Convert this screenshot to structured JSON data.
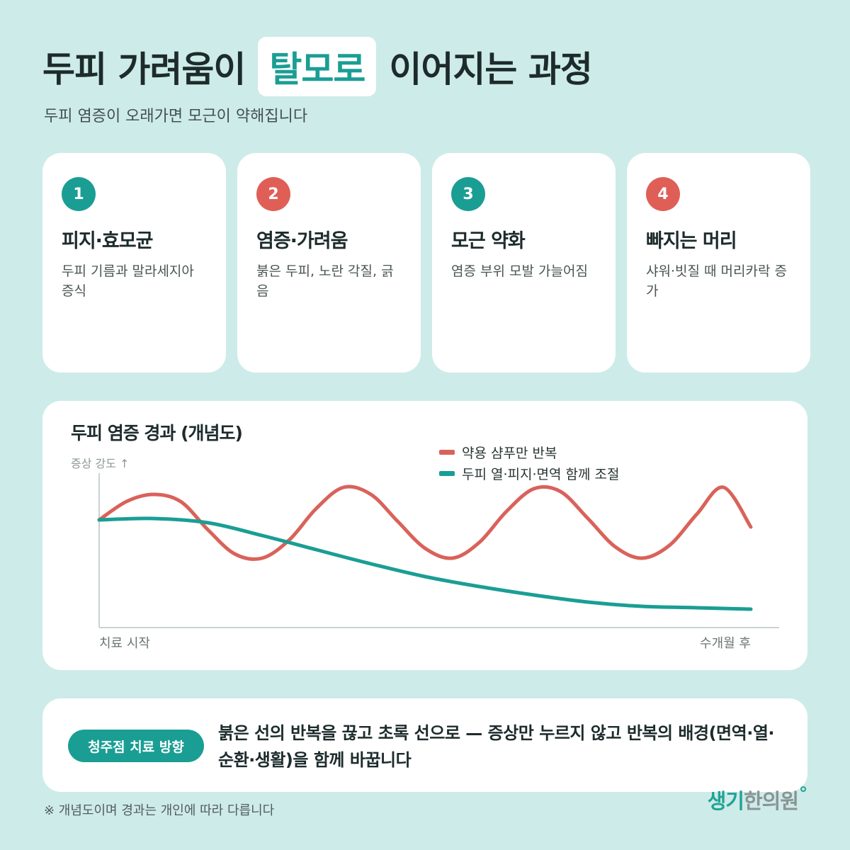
{
  "title": {
    "before": "두피 가려움이",
    "highlight": "탈모로",
    "after": "이어지는 과정"
  },
  "subtitle": "두피 염증이 오래가면 모근이 약해집니다",
  "steps": [
    {
      "number": "1",
      "title": "피지·효모균",
      "desc": "두피 기름과 말라세지아 증식",
      "color": "#1a9e94"
    },
    {
      "number": "2",
      "title": "염증·가려움",
      "desc": "붉은 두피, 노란 각질, 긁음",
      "color": "#df5f57"
    },
    {
      "number": "3",
      "title": "모근 약화",
      "desc": "염증 부위 모발 가늘어짐",
      "color": "#1a9e94"
    },
    {
      "number": "4",
      "title": "빠지는 머리",
      "desc": "샤워·빗질 때 머리카락 증가",
      "color": "#df5f57"
    }
  ],
  "chart_data": {
    "type": "line",
    "title": "두피 염증 경과 (개념도)",
    "ylabel": "증상 강도 ↑",
    "x_start_label": "치료 시작",
    "x_end_label": "수개월 후",
    "xlim": [
      0,
      1
    ],
    "ylim": [
      0,
      1
    ],
    "grid": false,
    "legend_position": "top-right",
    "series": [
      {
        "name": "약용 샴푸만 반복",
        "color": "#d9625a",
        "points": [
          [
            0,
            0.71
          ],
          [
            0.042,
            0.84
          ],
          [
            0.083,
            0.89
          ],
          [
            0.125,
            0.84
          ],
          [
            0.167,
            0.64
          ],
          [
            0.208,
            0.47
          ],
          [
            0.25,
            0.44
          ],
          [
            0.292,
            0.57
          ],
          [
            0.333,
            0.79
          ],
          [
            0.375,
            0.94
          ],
          [
            0.417,
            0.89
          ],
          [
            0.458,
            0.7
          ],
          [
            0.5,
            0.51
          ],
          [
            0.542,
            0.44
          ],
          [
            0.583,
            0.55
          ],
          [
            0.625,
            0.77
          ],
          [
            0.667,
            0.93
          ],
          [
            0.708,
            0.91
          ],
          [
            0.75,
            0.72
          ],
          [
            0.792,
            0.52
          ],
          [
            0.833,
            0.44
          ],
          [
            0.875,
            0.53
          ],
          [
            0.917,
            0.75
          ],
          [
            0.958,
            0.94
          ],
          [
            1.0,
            0.87
          ],
          [
            1.0,
            0.87
          ],
          [
            1.0,
            0.87
          ],
          [
            1.0,
            0.87
          ],
          [
            1.0,
            0.87
          ],
          [
            1.0,
            0.87
          ],
          [
            1.0,
            0.66
          ]
        ]
      },
      {
        "name": "두피 열·피지·면역 함께 조절",
        "color": "#1a9e94",
        "points": [
          [
            0,
            0.71
          ],
          [
            0.083,
            0.72
          ],
          [
            0.167,
            0.69
          ],
          [
            0.25,
            0.6
          ],
          [
            0.333,
            0.5
          ],
          [
            0.417,
            0.4
          ],
          [
            0.5,
            0.31
          ],
          [
            0.583,
            0.24
          ],
          [
            0.667,
            0.18
          ],
          [
            0.75,
            0.13
          ],
          [
            0.833,
            0.1
          ],
          [
            0.917,
            0.09
          ],
          [
            1.0,
            0.08
          ]
        ]
      }
    ]
  },
  "callout": {
    "pill": "청주점 치료 방향",
    "message": "붉은 선의 반복을 끊고 초록 선으로 — 증상만 누르지 않고 반복의 배경(면역·열·순환·생활)을 함께 바꿉니다"
  },
  "footnote": "※ 개념도이며 경과는 개인에 따라 다릅니다",
  "logo": {
    "part1": "생기",
    "part2": "한의원"
  },
  "colors": {
    "teal": "#1a9e94",
    "red": "#df5f57",
    "background": "#cdebe9"
  }
}
